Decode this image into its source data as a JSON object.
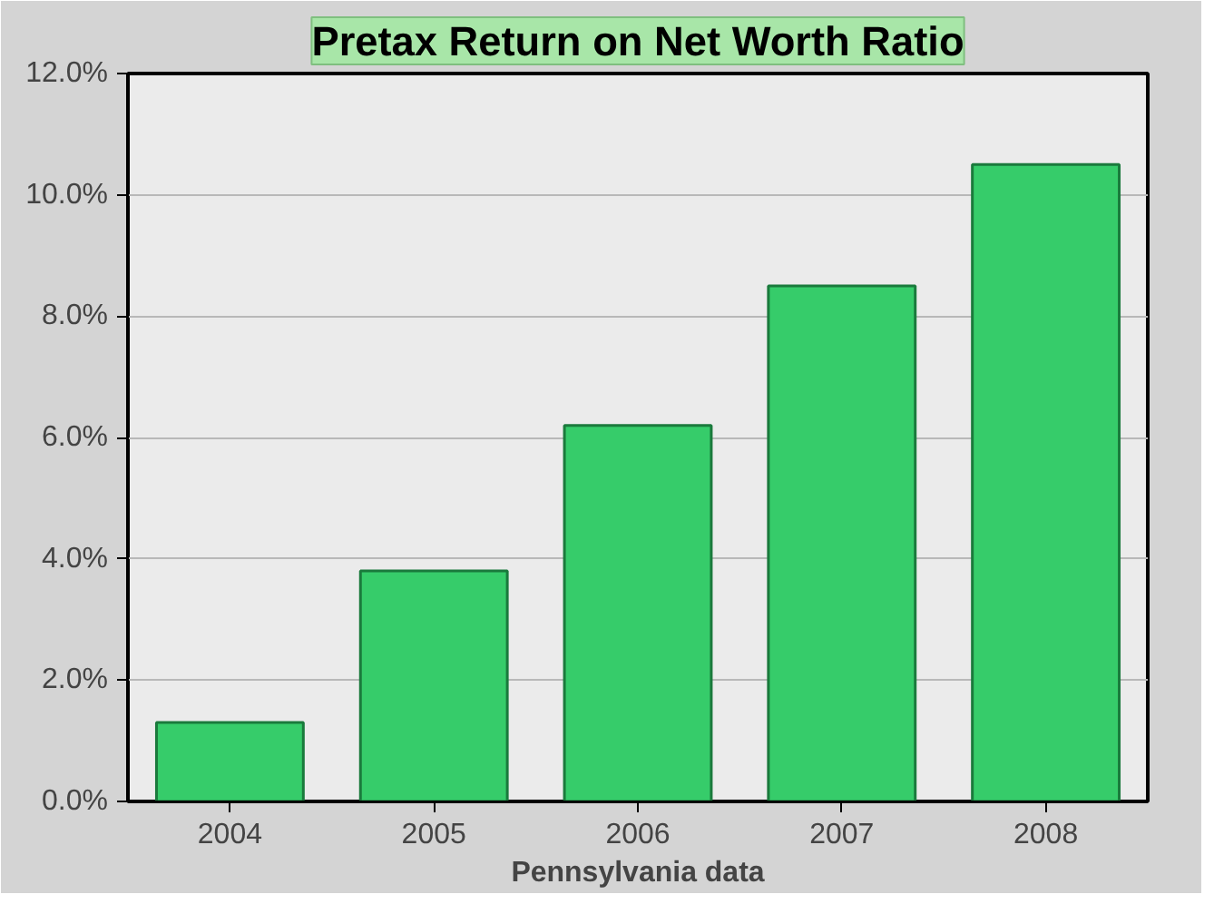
{
  "chart_data": {
    "type": "bar",
    "title": "Pretax Return on Net Worth Ratio",
    "xlabel": "Pennsylvania data",
    "categories": [
      "2004",
      "2005",
      "2006",
      "2007",
      "2008"
    ],
    "values": [
      1.3,
      3.8,
      6.2,
      8.5,
      10.5
    ],
    "color": "#36cc6a",
    "ylim": [
      0,
      12
    ],
    "yticks": [
      {
        "value": 0,
        "label": "0.0%"
      },
      {
        "value": 2,
        "label": "2.0%"
      },
      {
        "value": 4,
        "label": "4.0%"
      },
      {
        "value": 6,
        "label": "6.0%"
      },
      {
        "value": 8,
        "label": "8.0%"
      },
      {
        "value": 10,
        "label": "10.0%"
      },
      {
        "value": 12,
        "label": "12.0%"
      }
    ],
    "grid": "y"
  }
}
